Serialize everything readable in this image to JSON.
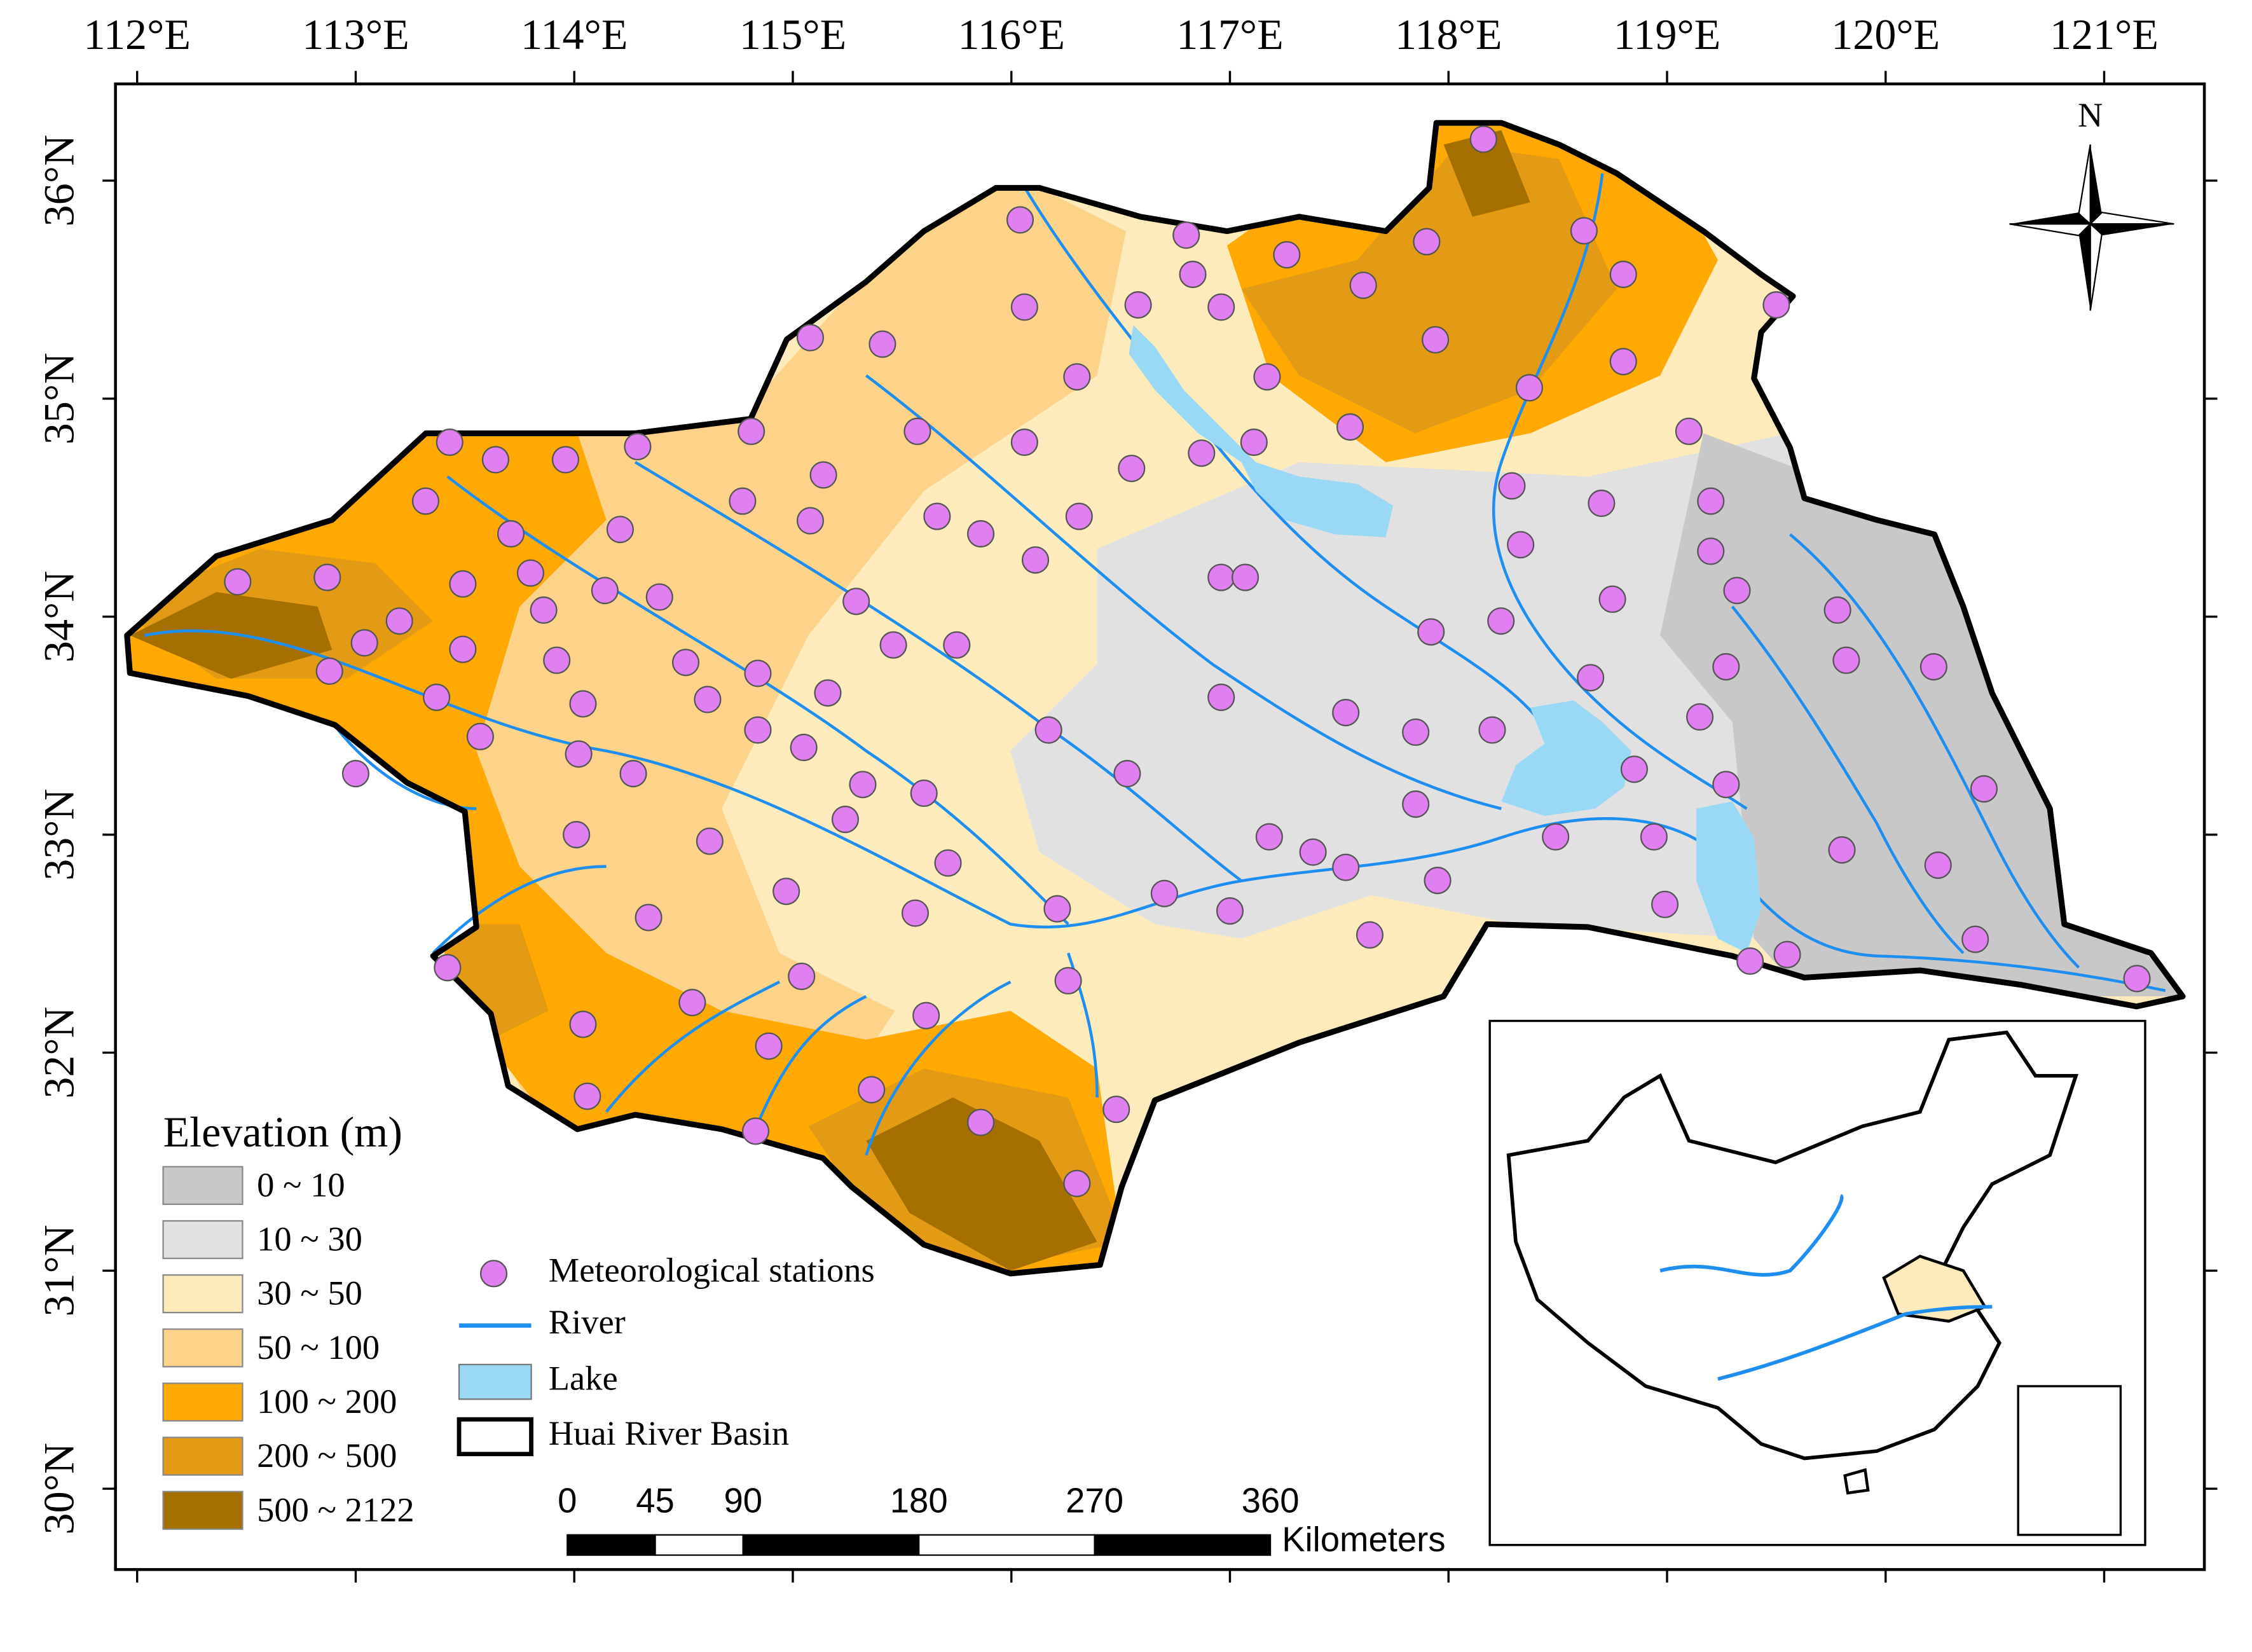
{
  "map": {
    "lon_ticks": [
      {
        "value": 112,
        "label": "112°E"
      },
      {
        "value": 113,
        "label": "113°E"
      },
      {
        "value": 114,
        "label": "114°E"
      },
      {
        "value": 115,
        "label": "115°E"
      },
      {
        "value": 116,
        "label": "116°E"
      },
      {
        "value": 117,
        "label": "117°E"
      },
      {
        "value": 118,
        "label": "118°E"
      },
      {
        "value": 119,
        "label": "119°E"
      },
      {
        "value": 120,
        "label": "120°E"
      },
      {
        "value": 121,
        "label": "121°E"
      }
    ],
    "lat_ticks": [
      {
        "value": 30,
        "label": "30°N"
      },
      {
        "value": 31,
        "label": "31°N"
      },
      {
        "value": 32,
        "label": "32°N"
      },
      {
        "value": 33,
        "label": "33°N"
      },
      {
        "value": 34,
        "label": "34°N"
      },
      {
        "value": 35,
        "label": "35°N"
      },
      {
        "value": 36,
        "label": "36°N"
      }
    ],
    "north_label": "N",
    "elevation_legend": {
      "title": "Elevation (m)",
      "items": [
        {
          "label": "0 ~ 10",
          "color": "#c8c8c8"
        },
        {
          "label": "10 ~ 30",
          "color": "#e1e1e1"
        },
        {
          "label": "30 ~ 50",
          "color": "#fdebbb"
        },
        {
          "label": "50 ~ 100",
          "color": "#fdd38a"
        },
        {
          "label": "100 ~ 200",
          "color": "#ffa902"
        },
        {
          "label": "200 ~ 500",
          "color": "#e39a14"
        },
        {
          "label": "500 ~ 2122",
          "color": "#a57000"
        }
      ]
    },
    "feature_legend": {
      "stations": {
        "label": "Meteorological stations",
        "color": "#e07ff0"
      },
      "river": {
        "label": "River",
        "color": "#1e8ff0"
      },
      "lake": {
        "label": "Lake",
        "color": "#9ad9f6"
      },
      "basin": {
        "label": "Huai River Basin",
        "color": "#000000"
      }
    },
    "scale_bar": {
      "ticks": [
        0,
        45,
        90,
        180,
        270,
        360
      ],
      "unit": "Kilometers"
    },
    "stations": [
      [
        112.46,
        34.16
      ],
      [
        112.87,
        34.18
      ],
      [
        112.88,
        33.75
      ],
      [
        113.04,
        33.88
      ],
      [
        113.0,
        33.28
      ],
      [
        113.2,
        33.98
      ],
      [
        113.32,
        34.53
      ],
      [
        113.37,
        33.63
      ],
      [
        113.43,
        34.8
      ],
      [
        113.49,
        34.15
      ],
      [
        113.49,
        33.85
      ],
      [
        113.57,
        33.45
      ],
      [
        113.64,
        34.72
      ],
      [
        113.71,
        34.38
      ],
      [
        113.8,
        34.2
      ],
      [
        113.86,
        34.03
      ],
      [
        113.92,
        33.8
      ],
      [
        113.96,
        34.72
      ],
      [
        114.04,
        33.6
      ],
      [
        114.02,
        33.37
      ],
      [
        114.01,
        33.0
      ],
      [
        114.21,
        34.4
      ],
      [
        114.14,
        34.12
      ],
      [
        114.27,
        33.28
      ],
      [
        114.29,
        34.78
      ],
      [
        114.39,
        34.09
      ],
      [
        114.51,
        33.79
      ],
      [
        114.61,
        33.62
      ],
      [
        114.62,
        32.97
      ],
      [
        114.34,
        32.62
      ],
      [
        113.42,
        32.39
      ],
      [
        114.04,
        32.13
      ],
      [
        114.06,
        31.8
      ],
      [
        114.54,
        32.23
      ],
      [
        114.84,
        33.48
      ],
      [
        114.84,
        33.74
      ],
      [
        114.77,
        34.53
      ],
      [
        114.81,
        34.85
      ],
      [
        115.08,
        35.28
      ],
      [
        115.41,
        35.25
      ],
      [
        115.14,
        34.65
      ],
      [
        115.08,
        34.44
      ],
      [
        115.29,
        34.07
      ],
      [
        115.16,
        33.65
      ],
      [
        115.05,
        33.4
      ],
      [
        115.32,
        33.23
      ],
      [
        115.24,
        33.07
      ],
      [
        115.6,
        33.19
      ],
      [
        115.46,
        33.87
      ],
      [
        115.75,
        33.87
      ],
      [
        115.71,
        32.87
      ],
      [
        115.56,
        32.64
      ],
      [
        114.97,
        32.74
      ],
      [
        115.04,
        32.35
      ],
      [
        114.89,
        32.03
      ],
      [
        114.83,
        31.64
      ],
      [
        115.36,
        31.83
      ],
      [
        115.61,
        32.17
      ],
      [
        115.86,
        31.68
      ],
      [
        116.26,
        32.33
      ],
      [
        116.21,
        32.66
      ],
      [
        116.48,
        31.74
      ],
      [
        116.3,
        31.4
      ],
      [
        116.17,
        33.48
      ],
      [
        116.11,
        34.26
      ],
      [
        115.86,
        34.38
      ],
      [
        115.66,
        34.46
      ],
      [
        115.57,
        34.85
      ],
      [
        116.06,
        34.8
      ],
      [
        116.31,
        34.46
      ],
      [
        116.3,
        35.1
      ],
      [
        116.06,
        35.42
      ],
      [
        116.04,
        35.82
      ],
      [
        116.58,
        35.43
      ],
      [
        116.8,
        35.75
      ],
      [
        116.83,
        35.57
      ],
      [
        116.96,
        35.42
      ],
      [
        116.55,
        34.68
      ],
      [
        116.87,
        34.75
      ],
      [
        117.11,
        34.8
      ],
      [
        117.17,
        35.1
      ],
      [
        117.26,
        35.66
      ],
      [
        117.55,
        34.87
      ],
      [
        117.61,
        35.52
      ],
      [
        117.9,
        35.72
      ],
      [
        117.94,
        35.27
      ],
      [
        118.16,
        36.19
      ],
      [
        118.37,
        35.05
      ],
      [
        118.29,
        34.6
      ],
      [
        118.33,
        34.33
      ],
      [
        118.62,
        35.77
      ],
      [
        118.8,
        35.57
      ],
      [
        118.8,
        35.17
      ],
      [
        118.7,
        34.52
      ],
      [
        119.1,
        34.85
      ],
      [
        119.2,
        34.53
      ],
      [
        119.2,
        34.3
      ],
      [
        119.32,
        34.12
      ],
      [
        119.5,
        35.43
      ],
      [
        118.75,
        34.08
      ],
      [
        118.24,
        33.98
      ],
      [
        117.92,
        33.93
      ],
      [
        116.96,
        34.18
      ],
      [
        117.07,
        34.18
      ],
      [
        116.96,
        33.63
      ],
      [
        117.53,
        33.56
      ],
      [
        117.85,
        33.47
      ],
      [
        118.2,
        33.48
      ],
      [
        118.65,
        33.72
      ],
      [
        118.85,
        33.3
      ],
      [
        119.15,
        33.54
      ],
      [
        119.27,
        33.77
      ],
      [
        119.27,
        33.23
      ],
      [
        119.78,
        34.03
      ],
      [
        119.82,
        33.8
      ],
      [
        120.22,
        33.77
      ],
      [
        120.45,
        33.21
      ],
      [
        119.8,
        32.93
      ],
      [
        120.24,
        32.86
      ],
      [
        120.41,
        32.52
      ],
      [
        121.15,
        32.34
      ],
      [
        119.55,
        32.45
      ],
      [
        119.38,
        32.42
      ],
      [
        118.99,
        32.68
      ],
      [
        118.94,
        32.99
      ],
      [
        118.49,
        32.99
      ],
      [
        117.95,
        32.79
      ],
      [
        117.85,
        33.14
      ],
      [
        117.64,
        32.54
      ],
      [
        117.53,
        32.85
      ],
      [
        117.38,
        32.92
      ],
      [
        117.18,
        32.99
      ],
      [
        117.0,
        32.65
      ],
      [
        116.7,
        32.73
      ],
      [
        116.53,
        33.28
      ]
    ]
  }
}
